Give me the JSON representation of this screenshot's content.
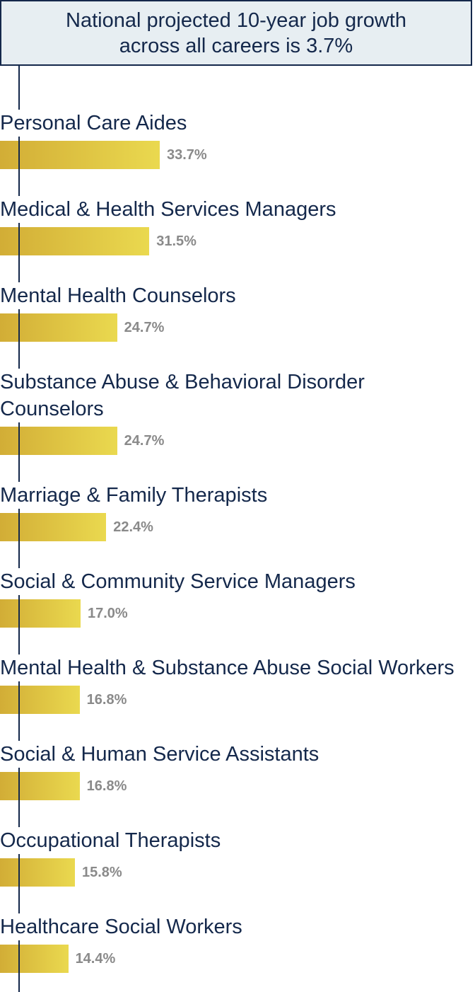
{
  "callout": {
    "line1": "National projected 10-year job growth",
    "line2": "across all careers is 3.7%"
  },
  "chart_data": {
    "type": "bar",
    "orientation": "horizontal",
    "reference_value": 3.7,
    "value_suffix": "%",
    "categories": [
      "Personal Care Aides",
      "Medical & Health Services Managers",
      "Mental Health Counselors",
      "Substance Abuse & Behavioral Disorder Counselors",
      "Marriage & Family Therapists",
      "Social & Community Service Managers",
      "Mental Health & Substance Abuse Social Workers",
      "Social & Human Service Assistants",
      "Occupational Therapists",
      "Healthcare Social Workers"
    ],
    "values": [
      33.7,
      31.5,
      24.7,
      24.7,
      22.4,
      17.0,
      16.8,
      16.8,
      15.8,
      14.4
    ],
    "value_labels": [
      "33.7%",
      "31.5%",
      "24.7%",
      "24.7%",
      "22.4%",
      "17.0%",
      "16.8%",
      "16.8%",
      "15.8%",
      "14.4%"
    ],
    "colors": {
      "bar_start": "#d2ad36",
      "bar_end": "#ead94f",
      "value_text": "#8a8a8a",
      "label_text": "#14284b",
      "reference_line": "#14284b",
      "callout_bg": "#e7eef2"
    }
  }
}
